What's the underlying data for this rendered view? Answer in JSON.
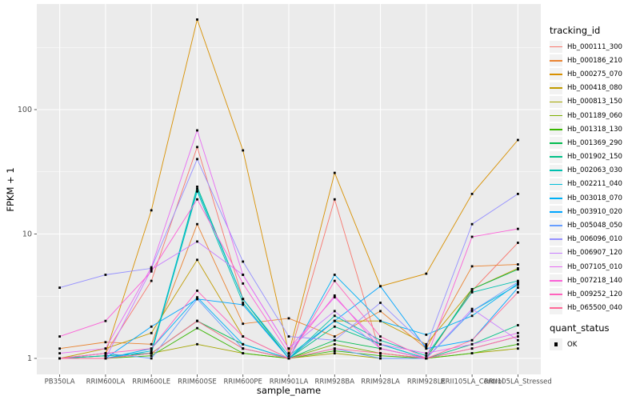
{
  "figure": {
    "background": "#ffffff",
    "panel_background": "#EBEBEB",
    "gridline_color": "#ffffff",
    "tick_label_color": "#4D4D4D",
    "point_color": "#000000"
  },
  "legend": {
    "tracking": {
      "title": "tracking_id"
    },
    "quant": {
      "title": "quant_status",
      "items": [
        {
          "label": "OK",
          "glyph": "filled-square-point-icon"
        }
      ]
    }
  },
  "chart_data": {
    "type": "line",
    "title": "",
    "xlabel": "sample_name",
    "ylabel": "FPKM + 1",
    "y_scale": "log10",
    "ylim": [
      0.75,
      700
    ],
    "y_major_ticks": [
      1,
      10,
      100
    ],
    "y_minor_ticks": [
      3.162,
      31.62,
      316.2
    ],
    "grid": true,
    "legend_position": "right",
    "point_shape": "filled-square",
    "categories": [
      "PB350LA",
      "RRIM600LA",
      "RRIM600LE",
      "RRIM600SE",
      "RRIM600PE",
      "RRIM901LA",
      "RRIM928BA",
      "RRIM928LA",
      "RRIM928LE",
      "RRII105LA_Control",
      "RRII105LA_Stressed"
    ],
    "series": [
      {
        "name": "Hb_000111_300",
        "color": "#F8766D",
        "values": [
          1.0,
          1.1,
          4.2,
          50,
          3.0,
          1.0,
          19,
          1.1,
          1.0,
          3.5,
          8.5
        ]
      },
      {
        "name": "Hb_000186_210",
        "color": "#EA8331",
        "values": [
          1.2,
          1.35,
          1.3,
          12,
          1.9,
          2.1,
          1.5,
          2.4,
          1.2,
          5.5,
          5.7
        ]
      },
      {
        "name": "Hb_000275_070",
        "color": "#D89000",
        "values": [
          1.0,
          1.1,
          15.5,
          530,
          47,
          1.1,
          31,
          3.8,
          4.8,
          21,
          57
        ]
      },
      {
        "name": "Hb_000418_080",
        "color": "#C09B00",
        "values": [
          1.0,
          1.2,
          1.6,
          6.2,
          1.5,
          1.0,
          2.0,
          2.0,
          1.3,
          3.6,
          5.3
        ]
      },
      {
        "name": "Hb_000813_150",
        "color": "#A3A500",
        "values": [
          1.0,
          1.0,
          1.1,
          1.3,
          1.1,
          1.0,
          1.1,
          1.0,
          1.0,
          1.1,
          1.2
        ]
      },
      {
        "name": "Hb_001189_060",
        "color": "#7CAE00",
        "values": [
          1.0,
          1.05,
          1.1,
          2.0,
          1.2,
          1.0,
          1.3,
          1.1,
          1.0,
          1.2,
          1.5
        ]
      },
      {
        "name": "Hb_001318_130",
        "color": "#39B600",
        "values": [
          1.0,
          1.0,
          1.05,
          1.75,
          1.1,
          1.0,
          1.15,
          1.05,
          1.0,
          1.1,
          1.3
        ]
      },
      {
        "name": "Hb_001369_290",
        "color": "#00BB4E",
        "values": [
          1.0,
          1.05,
          1.1,
          2.0,
          1.3,
          1.0,
          1.4,
          1.2,
          1.0,
          3.6,
          5.2
        ]
      },
      {
        "name": "Hb_001902_150",
        "color": "#00C087",
        "values": [
          1.0,
          1.0,
          1.1,
          24,
          3.0,
          1.0,
          1.8,
          1.3,
          1.0,
          1.3,
          1.85
        ]
      },
      {
        "name": "Hb_002063_030",
        "color": "#00C0AF",
        "values": [
          1.0,
          1.05,
          1.1,
          22,
          2.8,
          1.0,
          2.2,
          1.4,
          1.05,
          3.4,
          4.2
        ]
      },
      {
        "name": "Hb_002211_040",
        "color": "#00BCD8",
        "values": [
          1.0,
          1.0,
          1.15,
          23,
          3.0,
          1.05,
          2.0,
          1.3,
          1.0,
          2.4,
          3.9
        ]
      },
      {
        "name": "Hb_003018_070",
        "color": "#00B0F6",
        "values": [
          1.0,
          1.0,
          1.2,
          3.1,
          1.3,
          1.0,
          4.7,
          2.0,
          1.55,
          2.2,
          4.0
        ]
      },
      {
        "name": "Hb_003910_020",
        "color": "#00A5FF",
        "values": [
          1.0,
          1.0,
          1.8,
          3.0,
          2.7,
          1.0,
          2.0,
          3.8,
          1.2,
          1.4,
          3.7
        ]
      },
      {
        "name": "Hb_005048_050",
        "color": "#689EFF",
        "values": [
          1.0,
          1.1,
          1.0,
          3.0,
          1.2,
          1.0,
          1.2,
          1.0,
          1.0,
          2.4,
          4.1
        ]
      },
      {
        "name": "Hb_006096_010",
        "color": "#9590FF",
        "values": [
          3.7,
          4.7,
          5.3,
          40,
          6.0,
          1.5,
          1.4,
          2.8,
          1.25,
          12,
          21
        ]
      },
      {
        "name": "Hb_006907_120",
        "color": "#C77CFF",
        "values": [
          1.0,
          1.0,
          5.2,
          8.7,
          4.7,
          1.2,
          2.4,
          1.2,
          1.0,
          2.5,
          1.4
        ]
      },
      {
        "name": "Hb_007105_010",
        "color": "#E76BF3",
        "values": [
          1.1,
          1.2,
          5.4,
          68,
          4.7,
          1.2,
          3.1,
          1.3,
          1.1,
          1.3,
          1.6
        ]
      },
      {
        "name": "Hb_007218_140",
        "color": "#FB61D7",
        "values": [
          1.5,
          2.0,
          5.0,
          19,
          4.0,
          1.1,
          3.2,
          1.2,
          1.0,
          9.5,
          11
        ]
      },
      {
        "name": "Hb_009252_120",
        "color": "#FF62BC",
        "values": [
          1.0,
          1.1,
          1.2,
          3.5,
          1.5,
          1.0,
          4.2,
          1.5,
          1.0,
          1.2,
          1.5
        ]
      },
      {
        "name": "Hb_065500_040",
        "color": "#FF6A98",
        "values": [
          1.0,
          1.0,
          1.1,
          2.0,
          1.2,
          1.0,
          1.2,
          1.1,
          1.0,
          1.4,
          3.4
        ]
      }
    ],
    "quant_status": "OK"
  }
}
